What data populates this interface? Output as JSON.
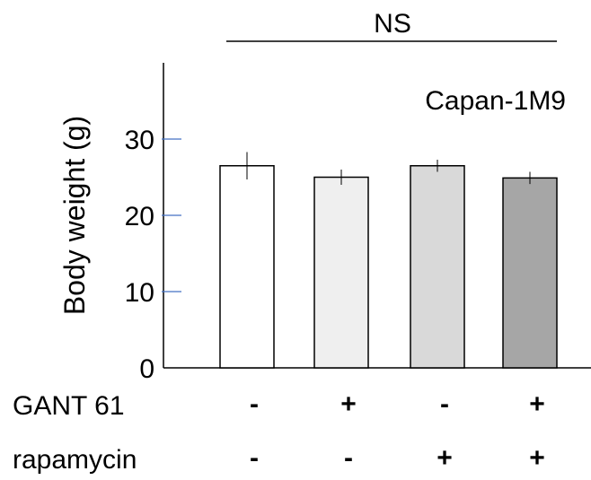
{
  "chart_data": {
    "type": "bar",
    "panel_label": "Capan-1M9",
    "ylabel": "Body weight (g)",
    "ylim": [
      0,
      40
    ],
    "yticks": [
      0,
      10,
      20,
      30
    ],
    "ytick_labels": [
      "0",
      "10",
      "20",
      "30"
    ],
    "categories": [
      "- / -",
      "+ / -",
      "- / +",
      "+ / +"
    ],
    "values": [
      26.5,
      25.0,
      26.5,
      24.9
    ],
    "errors": [
      1.8,
      1.0,
      0.8,
      0.8
    ],
    "bar_colors": [
      "#ffffff",
      "#efefef",
      "#d9d9d9",
      "#a6a6a6"
    ],
    "significance": "NS",
    "treatments": [
      {
        "name": "GANT 61",
        "signs": [
          "-",
          "+",
          "-",
          "+"
        ]
      },
      {
        "name": "rapamycin",
        "signs": [
          "-",
          "-",
          "+",
          "+"
        ]
      }
    ],
    "tick_color": "#4472c4"
  }
}
